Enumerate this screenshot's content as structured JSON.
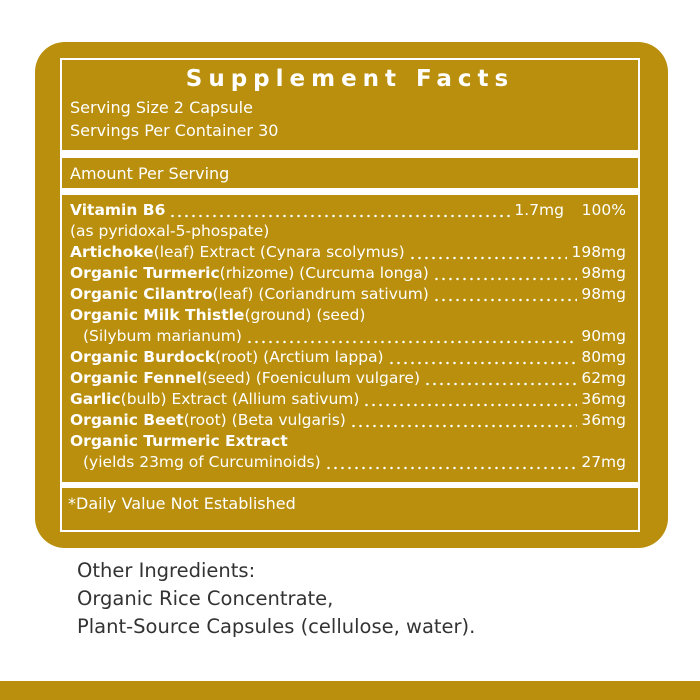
{
  "panel": {
    "title": "Supplement Facts",
    "serving_size": "Serving Size 2 Capsule",
    "servings_per_container": "Servings Per Container 30",
    "amount_per_serving": "Amount Per Serving",
    "ingredients": [
      {
        "name": "Vitamin B6",
        "amount": "1.7mg",
        "daily_value": "100%",
        "note": "(as pyridoxal-5-phospate)"
      },
      {
        "name": "Artichoke",
        "detail": "(leaf) Extract (Cynara scolymus)",
        "amount": "198mg"
      },
      {
        "name": "Organic Turmeric",
        "detail": "(rhizome) (Curcuma longa)",
        "amount": "98mg"
      },
      {
        "name": "Organic Cilantro",
        "detail": "(leaf) (Coriandrum sativum)",
        "amount": "98mg"
      },
      {
        "name": "Organic Milk Thistle",
        "detail": "(ground) (seed)",
        "note": "(Silybum marianum)",
        "amount": "90mg"
      },
      {
        "name": "Organic Burdock",
        "detail": "(root) (Arctium lappa)",
        "amount": "80mg"
      },
      {
        "name": "Organic Fennel",
        "detail": "(seed) (Foeniculum vulgare)",
        "amount": "62mg"
      },
      {
        "name": "Garlic",
        "detail": "(bulb) Extract (Allium sativum)",
        "amount": "36mg"
      },
      {
        "name": "Organic Beet",
        "detail": "(root) (Beta vulgaris)",
        "amount": "36mg"
      },
      {
        "name": "Organic Turmeric Extract",
        "note": "(yields 23mg of Curcuminoids)",
        "amount": "27mg"
      }
    ],
    "footnote": "*Daily Value Not Established"
  },
  "other_ingredients": {
    "heading": "Other Ingredients:",
    "lines": [
      "Organic Rice Concentrate,",
      "Plant-Source Capsules (cellulose, water)."
    ]
  }
}
